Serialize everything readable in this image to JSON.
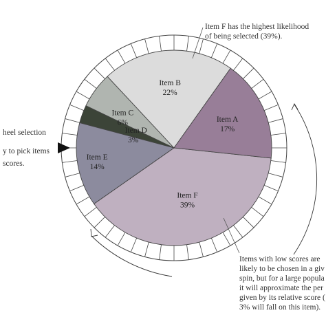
{
  "chart_data": {
    "type": "pie",
    "title": "",
    "slices": [
      {
        "label": "Item F",
        "value_label": "39%",
        "value": 39,
        "color": "#bfb0c0"
      },
      {
        "label": "Item E",
        "value_label": "14%",
        "value": 14,
        "color": "#8c8b9e"
      },
      {
        "label": "Item D",
        "value_label": "3%",
        "value": 3,
        "color": "#3c4438"
      },
      {
        "label": "Item C",
        "value_label": "6%",
        "value": 6,
        "color": "#b0b5b0"
      },
      {
        "label": "Item B",
        "value_label": "22%",
        "value": 22,
        "color": "#dcdcdc"
      },
      {
        "label": "Item A",
        "value_label": "17%",
        "value": 17,
        "color": "#987e98"
      }
    ],
    "annotations": {
      "top": [
        "Item F has the highest likelihood",
        "of being selected (39%)."
      ],
      "left": [
        "heel selection",
        "y to pick items",
        "scores."
      ],
      "bottom_right": [
        "Items with low scores are",
        "likely to be chosen in a giv",
        "spin, but for a large popula",
        "it will approximate the per",
        "given by its relative score (",
        "3% will fall on this item)."
      ]
    }
  },
  "colors": {
    "outline": "#444444",
    "ring_fill": "#ffffff",
    "pointer": "#111111",
    "annotation_text": "#333333"
  }
}
